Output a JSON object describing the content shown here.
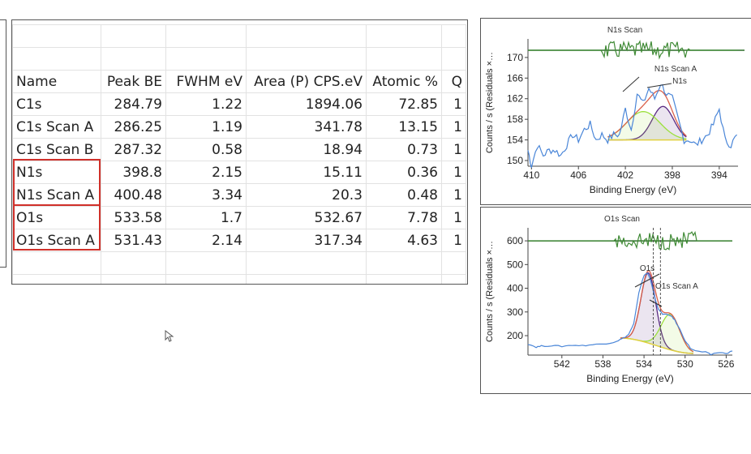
{
  "table": {
    "headers": [
      "Name",
      "Peak BE",
      "FWHM eV",
      "Area (P) CPS.eV",
      "Atomic %",
      "Q"
    ],
    "rows": [
      [
        "C1s",
        "284.79",
        "1.22",
        "1894.06",
        "72.85",
        "1"
      ],
      [
        "C1s Scan A",
        "286.25",
        "1.19",
        "341.78",
        "13.15",
        "1"
      ],
      [
        "C1s Scan B",
        "287.32",
        "0.58",
        "18.94",
        "0.73",
        "1"
      ],
      [
        "N1s",
        "398.8",
        "2.15",
        "15.11",
        "0.36",
        "1"
      ],
      [
        "N1s Scan A",
        "400.48",
        "3.34",
        "20.3",
        "0.48",
        "1"
      ],
      [
        "O1s",
        "533.58",
        "1.7",
        "532.67",
        "7.78",
        "1"
      ],
      [
        "O1s Scan A",
        "531.43",
        "2.14",
        "317.34",
        "4.63",
        "1"
      ]
    ],
    "highlight_color": "#d0302a"
  },
  "chart_data": [
    {
      "type": "line",
      "title": "N1s Scan",
      "xlabel": "Binding Energy (eV)",
      "ylabel": "Counts / s  (Residuals ×…",
      "xlim": [
        410.3,
        392.4
      ],
      "ylim": [
        148.9,
        173.6
      ],
      "xticks": [
        410,
        406,
        402,
        398,
        394
      ],
      "yticks": [
        150,
        154,
        158,
        162,
        166,
        170
      ],
      "raw": [
        [
          410.3,
          152
        ],
        [
          410,
          149
        ],
        [
          409.5,
          153
        ],
        [
          409,
          151
        ],
        [
          408.5,
          152
        ],
        [
          408,
          152
        ],
        [
          407.5,
          151
        ],
        [
          407,
          153
        ],
        [
          406.5,
          155
        ],
        [
          406,
          154
        ],
        [
          405.5,
          156
        ],
        [
          405,
          157
        ],
        [
          404.5,
          154
        ],
        [
          404,
          155
        ],
        [
          403.5,
          154
        ],
        [
          403,
          155
        ],
        [
          402.5,
          155
        ],
        [
          402,
          160
        ],
        [
          401.5,
          156
        ],
        [
          401,
          163
        ],
        [
          400.5,
          161
        ],
        [
          400,
          164
        ],
        [
          399.5,
          162
        ],
        [
          399,
          165
        ],
        [
          398.5,
          163
        ],
        [
          398,
          162
        ],
        [
          397.5,
          158
        ],
        [
          397,
          154
        ],
        [
          396.5,
          154
        ],
        [
          396,
          153
        ],
        [
          395.5,
          154
        ],
        [
          395,
          155
        ],
        [
          394.5,
          157
        ],
        [
          394,
          160
        ],
        [
          393.5,
          154
        ],
        [
          393,
          153
        ],
        [
          392.5,
          155
        ]
      ],
      "background": {
        "value": 154,
        "from": 403.5,
        "to": 396.8
      },
      "residual_level": 171.4,
      "components": [
        {
          "name": "N1s",
          "center": 398.8,
          "height": 160.5,
          "fwhm": 2.15,
          "color": "#5a2a82"
        },
        {
          "name": "N1s Scan A",
          "center": 400.48,
          "height": 159.5,
          "fwhm": 3.34,
          "color": "#9be03c"
        }
      ],
      "envelope_color": "#d9604a",
      "raw_color": "#4a86d8"
    },
    {
      "type": "line",
      "title": "O1s Scan",
      "xlabel": "Binding Energy (eV)",
      "ylabel": "Counts / s  (Residuals ×…",
      "xlim": [
        545.3,
        525.4
      ],
      "ylim": [
        118,
        655
      ],
      "xticks": [
        542,
        538,
        534,
        530,
        526
      ],
      "yticks": [
        200,
        300,
        400,
        500,
        600
      ],
      "raw": [
        [
          545.3,
          165
        ],
        [
          544.5,
          152
        ],
        [
          544,
          156
        ],
        [
          543,
          158
        ],
        [
          542,
          155
        ],
        [
          541,
          160
        ],
        [
          540,
          158
        ],
        [
          539,
          162
        ],
        [
          538,
          165
        ],
        [
          537,
          172
        ],
        [
          536.5,
          180
        ],
        [
          536,
          190
        ],
        [
          535.5,
          205
        ],
        [
          535,
          250
        ],
        [
          534.5,
          380
        ],
        [
          534,
          455
        ],
        [
          533.7,
          465
        ],
        [
          533.4,
          440
        ],
        [
          533,
          370
        ],
        [
          532.6,
          310
        ],
        [
          532.2,
          292
        ],
        [
          531.8,
          288
        ],
        [
          531.4,
          285
        ],
        [
          531,
          265
        ],
        [
          530.5,
          225
        ],
        [
          530,
          180
        ],
        [
          529.5,
          148
        ],
        [
          529,
          135
        ],
        [
          528,
          130
        ],
        [
          527.5,
          120
        ],
        [
          527,
          128
        ],
        [
          526,
          126
        ],
        [
          525.4,
          135
        ]
      ],
      "background": {
        "from_value": 190,
        "to_value": 125,
        "from": 536.3,
        "to": 529.2
      },
      "residual_level": 600,
      "markers": [
        533.1,
        532.4
      ],
      "components": [
        {
          "name": "O1s",
          "center": 533.58,
          "height": 465,
          "fwhm": 1.7,
          "color": "#5a2a82"
        },
        {
          "name": "O1s Scan A",
          "center": 531.43,
          "height": 290,
          "fwhm": 2.14,
          "color": "#9be03c"
        }
      ],
      "envelope_color": "#d9604a",
      "raw_color": "#4a86d8"
    }
  ]
}
